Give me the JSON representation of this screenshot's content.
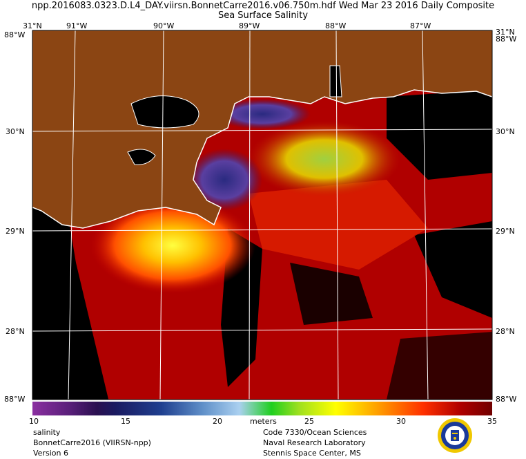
{
  "header": {
    "line1": "npp.2016083.0323.D.L4_DAY.viirsn.BonnetCarre2016.v06.750m.hdf   Wed Mar 23 2016 Daily Composite",
    "line2": "Sea Surface Salinity"
  },
  "axes": {
    "top_lon": [
      "91°W",
      "90°W",
      "89°W",
      "88°W",
      "87°W"
    ],
    "lat": [
      "30°N",
      "29°N",
      "28°N"
    ],
    "corner_top_left": "31°N",
    "corner_top_right": "31°N",
    "corner_left_top": "88°W",
    "corner_right_top": "88°W",
    "corner_bottom_left": "88°W",
    "corner_bottom_right": "88°W"
  },
  "colorbar": {
    "ticks": [
      "10",
      "15",
      "20",
      "25",
      "30",
      "35"
    ],
    "units": "meters",
    "colors": [
      "#8a2fa0",
      "#2a1050",
      "#1f3f8f",
      "#aad0f0",
      "#1fcf1f",
      "#ffff00",
      "#ffa000",
      "#ff3000",
      "#700000"
    ]
  },
  "footer": {
    "left": [
      "salinity",
      "BonnetCarre2016 (VIIRSN-npp)",
      "Version 6"
    ],
    "right": [
      "Code 7330/Ocean Sciences",
      "Naval Research Laboratory",
      "Stennis Space Center, MS"
    ]
  },
  "colors": {
    "land": "#8b4513",
    "ocean_high": "#b00000",
    "ocean_mid": "#ff3000",
    "no_data": "#000000",
    "coastline": "#ffffff",
    "graticule": "#ffffff"
  }
}
